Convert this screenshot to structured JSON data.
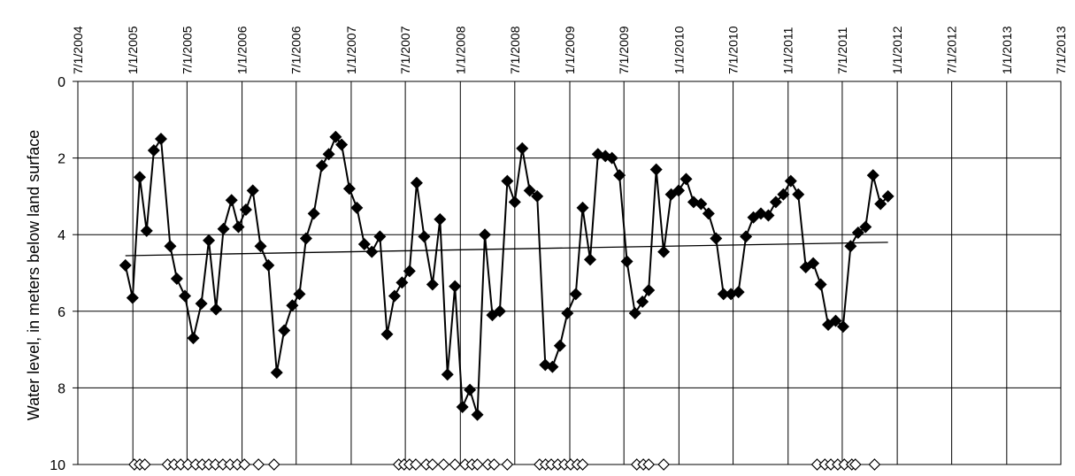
{
  "chart_data": {
    "type": "line",
    "title": "",
    "xlabel": "",
    "ylabel": "Water level, in meters below land surface",
    "x_axis_position": "top",
    "y_inverted": true,
    "ylim": [
      0,
      10
    ],
    "y_ticks": [
      "0",
      "2",
      "4",
      "6",
      "8",
      "10"
    ],
    "xlim": [
      "2004-07-01",
      "2013-07-01"
    ],
    "x_ticks": [
      "7/1/2004",
      "1/1/2005",
      "7/1/2005",
      "1/1/2006",
      "7/1/2006",
      "1/1/2007",
      "7/1/2007",
      "1/1/2008",
      "7/1/2008",
      "1/1/2009",
      "7/1/2009",
      "1/1/2010",
      "7/1/2010",
      "1/1/2011",
      "7/1/2011",
      "1/1/2012",
      "7/1/2012",
      "1/1/2013",
      "7/1/2013"
    ],
    "grid": true,
    "legend": "none",
    "series": [
      {
        "marker": "filled-diamond",
        "line": true,
        "points": [
          [
            "2004-12-07",
            4.8
          ],
          [
            "2004-12-31",
            5.65
          ],
          [
            "2005-01-24",
            2.5
          ],
          [
            "2005-02-16",
            3.9
          ],
          [
            "2005-03-12",
            1.8
          ],
          [
            "2005-04-05",
            1.5
          ],
          [
            "2005-05-06",
            4.3
          ],
          [
            "2005-05-28",
            5.15
          ],
          [
            "2005-06-24",
            5.6
          ],
          [
            "2005-07-22",
            6.7
          ],
          [
            "2005-08-18",
            5.8
          ],
          [
            "2005-09-12",
            4.15
          ],
          [
            "2005-10-06",
            5.95
          ],
          [
            "2005-10-31",
            3.85
          ],
          [
            "2005-11-27",
            3.1
          ],
          [
            "2005-12-20",
            3.8
          ],
          [
            "2006-01-14",
            3.35
          ],
          [
            "2006-02-06",
            2.85
          ],
          [
            "2006-03-04",
            4.3
          ],
          [
            "2006-03-30",
            4.8
          ],
          [
            "2006-04-27",
            7.6
          ],
          [
            "2006-05-22",
            6.5
          ],
          [
            "2006-06-18",
            5.85
          ],
          [
            "2006-07-12",
            5.55
          ],
          [
            "2006-08-03",
            4.1
          ],
          [
            "2006-08-29",
            3.45
          ],
          [
            "2006-09-25",
            2.2
          ],
          [
            "2006-10-18",
            1.9
          ],
          [
            "2006-11-10",
            1.45
          ],
          [
            "2006-11-30",
            1.65
          ],
          [
            "2006-12-26",
            2.8
          ],
          [
            "2007-01-20",
            3.3
          ],
          [
            "2007-02-14",
            4.25
          ],
          [
            "2007-03-11",
            4.45
          ],
          [
            "2007-04-07",
            4.05
          ],
          [
            "2007-05-01",
            6.6
          ],
          [
            "2007-05-26",
            5.6
          ],
          [
            "2007-06-20",
            5.25
          ],
          [
            "2007-07-15",
            4.95
          ],
          [
            "2007-08-08",
            2.65
          ],
          [
            "2007-09-02",
            4.05
          ],
          [
            "2007-09-30",
            5.3
          ],
          [
            "2007-10-25",
            3.6
          ],
          [
            "2007-11-19",
            7.65
          ],
          [
            "2007-12-14",
            5.35
          ],
          [
            "2008-01-08",
            8.5
          ],
          [
            "2008-02-02",
            8.05
          ],
          [
            "2008-02-27",
            8.7
          ],
          [
            "2008-03-23",
            4.0
          ],
          [
            "2008-04-17",
            6.1
          ],
          [
            "2008-05-12",
            6.0
          ],
          [
            "2008-06-06",
            2.6
          ],
          [
            "2008-07-01",
            3.15
          ],
          [
            "2008-07-26",
            1.75
          ],
          [
            "2008-08-20",
            2.85
          ],
          [
            "2008-09-14",
            3.0
          ],
          [
            "2008-10-11",
            7.4
          ],
          [
            "2008-11-04",
            7.45
          ],
          [
            "2008-11-29",
            6.9
          ],
          [
            "2008-12-24",
            6.05
          ],
          [
            "2009-01-21",
            5.55
          ],
          [
            "2009-02-13",
            3.3
          ],
          [
            "2009-03-10",
            4.65
          ],
          [
            "2009-04-05",
            1.9
          ],
          [
            "2009-04-30",
            1.95
          ],
          [
            "2009-05-22",
            2.0
          ],
          [
            "2009-06-16",
            2.45
          ],
          [
            "2009-07-11",
            4.7
          ],
          [
            "2009-08-07",
            6.05
          ],
          [
            "2009-09-01",
            5.75
          ],
          [
            "2009-09-22",
            5.45
          ],
          [
            "2009-10-17",
            2.3
          ],
          [
            "2009-11-11",
            4.45
          ],
          [
            "2009-12-06",
            2.95
          ],
          [
            "2009-12-31",
            2.85
          ],
          [
            "2010-01-25",
            2.55
          ],
          [
            "2010-02-19",
            3.15
          ],
          [
            "2010-03-16",
            3.2
          ],
          [
            "2010-04-10",
            3.45
          ],
          [
            "2010-05-05",
            4.1
          ],
          [
            "2010-05-30",
            5.55
          ],
          [
            "2010-06-24",
            5.55
          ],
          [
            "2010-07-19",
            5.5
          ],
          [
            "2010-08-13",
            4.05
          ],
          [
            "2010-09-07",
            3.55
          ],
          [
            "2010-10-02",
            3.45
          ],
          [
            "2010-10-27",
            3.5
          ],
          [
            "2010-11-21",
            3.15
          ],
          [
            "2010-12-16",
            2.95
          ],
          [
            "2011-01-10",
            2.6
          ],
          [
            "2011-02-04",
            2.95
          ],
          [
            "2011-03-01",
            4.85
          ],
          [
            "2011-03-26",
            4.75
          ],
          [
            "2011-04-20",
            5.3
          ],
          [
            "2011-05-15",
            6.35
          ],
          [
            "2011-06-09",
            6.25
          ],
          [
            "2011-07-04",
            6.4
          ],
          [
            "2011-07-29",
            4.3
          ],
          [
            "2011-08-23",
            3.95
          ],
          [
            "2011-09-17",
            3.8
          ],
          [
            "2011-10-12",
            2.45
          ],
          [
            "2011-11-06",
            3.2
          ],
          [
            "2011-12-01",
            3.0
          ]
        ]
      }
    ],
    "trendline": {
      "start": [
        "2004-12-07",
        4.55
      ],
      "end": [
        "2011-12-01",
        4.2
      ]
    },
    "missing_markers": {
      "marker": "open-diamond",
      "y": 10,
      "dates": [
        "2005-01-06",
        "2005-01-24",
        "2005-02-10",
        "2005-04-27",
        "2005-05-19",
        "2005-06-10",
        "2005-07-04",
        "2005-07-30",
        "2005-08-21",
        "2005-09-12",
        "2005-10-04",
        "2005-10-29",
        "2005-11-22",
        "2005-12-16",
        "2006-01-09",
        "2006-02-25",
        "2006-04-18",
        "2007-06-09",
        "2007-06-27",
        "2007-07-15",
        "2007-08-05",
        "2007-09-09",
        "2007-09-30",
        "2007-11-06",
        "2007-12-14",
        "2008-01-17",
        "2008-02-09",
        "2008-02-27",
        "2008-04-02",
        "2008-04-23",
        "2008-06-06",
        "2008-09-22",
        "2008-10-12",
        "2008-10-31",
        "2008-11-22",
        "2008-12-14",
        "2009-01-04",
        "2009-01-26",
        "2009-02-13",
        "2009-08-13",
        "2009-09-04",
        "2009-09-22",
        "2009-11-11",
        "2011-04-08",
        "2011-05-04",
        "2011-05-24",
        "2011-06-16",
        "2011-07-08",
        "2011-08-02",
        "2011-08-14",
        "2011-10-17"
      ]
    }
  }
}
